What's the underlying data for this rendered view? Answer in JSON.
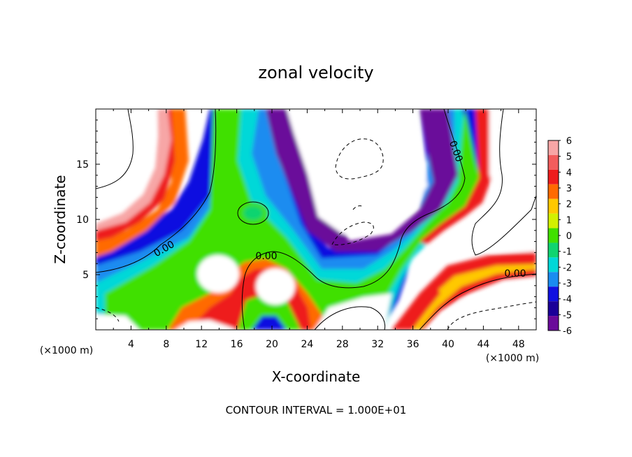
{
  "chart_data": {
    "type": "heatmap",
    "title": "zonal velocity",
    "xlabel": "X-coordinate",
    "ylabel": "Z-coordinate",
    "x_unit": "(×1000 m)",
    "x_unit_right": "(×1000 m)",
    "xlim": [
      0,
      50
    ],
    "ylim": [
      0,
      20
    ],
    "x_ticks": [
      4,
      8,
      12,
      16,
      20,
      24,
      28,
      32,
      36,
      40,
      44,
      48
    ],
    "y_ticks": [
      5,
      10,
      15
    ],
    "colorbar": {
      "ticks": [
        6,
        5,
        4,
        3,
        2,
        1,
        0,
        -1,
        -2,
        -3,
        -4,
        -5,
        -6
      ],
      "colors": [
        "#f7a6a6",
        "#f25c5c",
        "#ee1c1c",
        "#ff6a00",
        "#ffc800",
        "#d2f000",
        "#40e000",
        "#10d470",
        "#00d8d8",
        "#1a8cf0",
        "#1010e0",
        "#1a0098",
        "#6a0a9a"
      ]
    },
    "zero_contour_labels": [
      "0.00",
      "0.00",
      "0.00",
      "0.00"
    ],
    "footer": "CONTOUR INTERVAL = 1.000E+01"
  }
}
